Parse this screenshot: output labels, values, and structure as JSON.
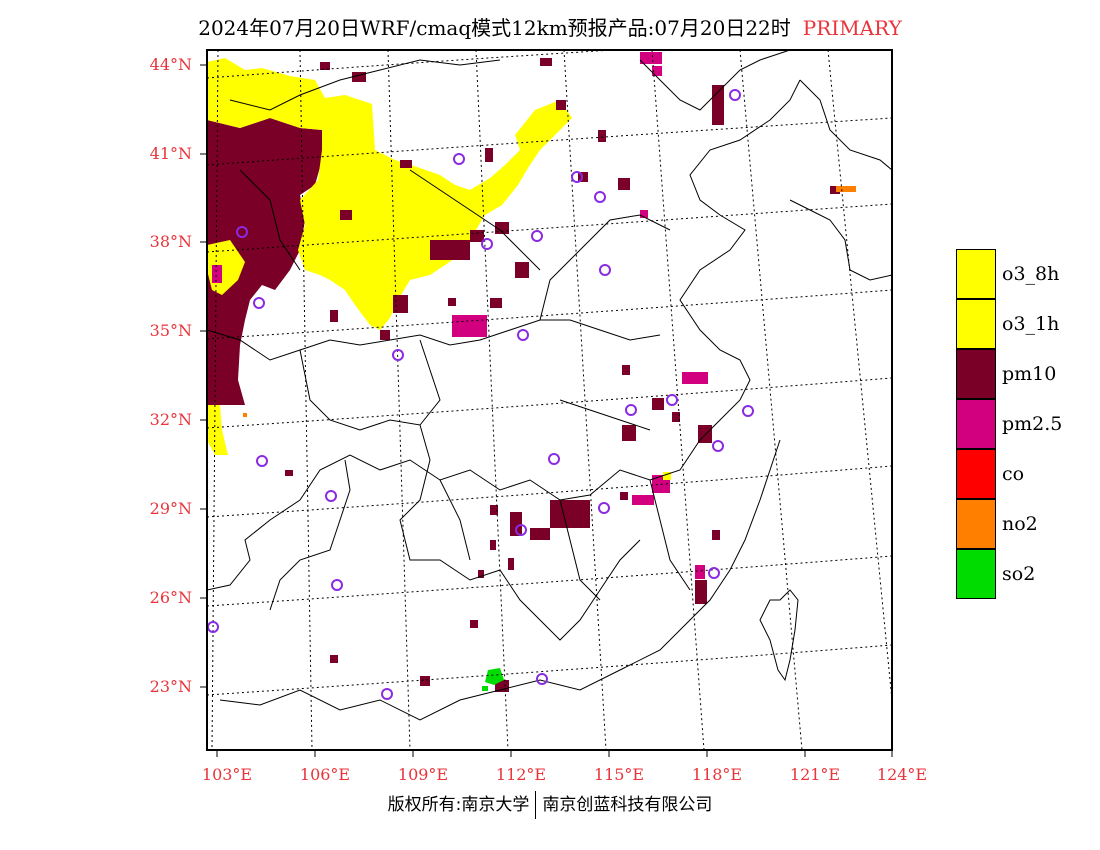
{
  "title": {
    "main": "2024年07月20日WRF/cmaq模式12km预报产品:07月20日22时",
    "tag": "PRIMARY"
  },
  "axes": {
    "lat_labels": [
      "44°N",
      "41°N",
      "38°N",
      "35°N",
      "32°N",
      "29°N",
      "26°N",
      "23°N"
    ],
    "lon_labels": [
      "103°E",
      "106°E",
      "109°E",
      "112°E",
      "115°E",
      "118°E",
      "121°E",
      "124°E"
    ]
  },
  "legend": [
    {
      "label": "o3_8h",
      "color": "#ffff00"
    },
    {
      "label": "o3_1h",
      "color": "#ffff00"
    },
    {
      "label": "pm10",
      "color": "#7a0028"
    },
    {
      "label": "pm2.5",
      "color": "#d2007e"
    },
    {
      "label": "co",
      "color": "#ff0000"
    },
    {
      "label": "no2",
      "color": "#ff8000"
    },
    {
      "label": "so2",
      "color": "#00dc00"
    }
  ],
  "footer": {
    "left": "版权所有:南京大学",
    "right": "南京创蓝科技有限公司"
  }
}
